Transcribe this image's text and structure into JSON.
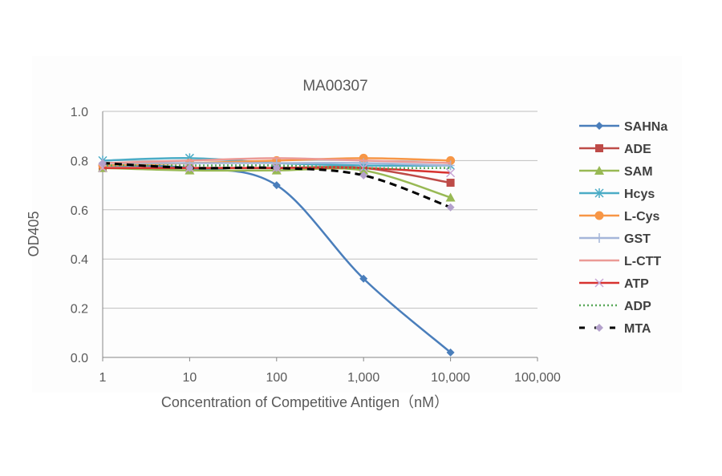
{
  "chart_data": {
    "type": "line",
    "title": "MA00307",
    "xlabel": "Concentration of Competitive Antigen（nM）",
    "ylabel": "OD405",
    "xscale": "log",
    "xlim": [
      1,
      100000
    ],
    "ylim": [
      0,
      1.0
    ],
    "x_ticks": [
      "1",
      "10",
      "100",
      "1,000",
      "10,000",
      "100,000"
    ],
    "y_ticks": [
      "0.0",
      "0.2",
      "0.4",
      "0.6",
      "0.8",
      "1.0"
    ],
    "grid": "horizontal",
    "legend": "right",
    "x": [
      1,
      10,
      100,
      1000,
      10000
    ],
    "series": [
      {
        "name": "SAHNa",
        "color": "#4a7ebb",
        "marker": "diamond",
        "dash": "solid",
        "values": [
          0.78,
          0.77,
          0.7,
          0.32,
          0.02
        ]
      },
      {
        "name": "ADE",
        "color": "#be4b48",
        "marker": "square",
        "dash": "solid",
        "values": [
          0.77,
          0.77,
          0.77,
          0.77,
          0.71
        ]
      },
      {
        "name": "SAM",
        "color": "#98b954",
        "marker": "triangle",
        "dash": "solid",
        "values": [
          0.77,
          0.76,
          0.76,
          0.76,
          0.65
        ]
      },
      {
        "name": "Hcys",
        "color": "#4bacc6",
        "marker": "star",
        "dash": "solid",
        "values": [
          0.8,
          0.81,
          0.79,
          0.78,
          0.78
        ]
      },
      {
        "name": "L-Cys",
        "color": "#f79646",
        "marker": "circle",
        "dash": "solid",
        "values": [
          0.78,
          0.79,
          0.8,
          0.81,
          0.8
        ]
      },
      {
        "name": "GST",
        "color": "#a5b6d9",
        "marker": "plus",
        "dash": "solid",
        "values": [
          0.79,
          0.79,
          0.79,
          0.79,
          0.78
        ]
      },
      {
        "name": "L-CTT",
        "color": "#eb9a96",
        "marker": "none",
        "dash": "solid",
        "values": [
          0.79,
          0.8,
          0.81,
          0.8,
          0.79
        ]
      },
      {
        "name": "ATP",
        "color": "#d7322f",
        "marker": "x",
        "dash": "solid",
        "values": [
          0.77,
          0.77,
          0.77,
          0.77,
          0.75
        ]
      },
      {
        "name": "ADP",
        "color": "#5aa85a",
        "marker": "none",
        "dash": "dotted",
        "values": [
          0.78,
          0.78,
          0.78,
          0.77,
          0.77
        ]
      },
      {
        "name": "MTA",
        "color": "#000000",
        "marker": "diamond-lilac",
        "dash": "dashed",
        "values": [
          0.79,
          0.77,
          0.77,
          0.74,
          0.61
        ]
      }
    ]
  }
}
